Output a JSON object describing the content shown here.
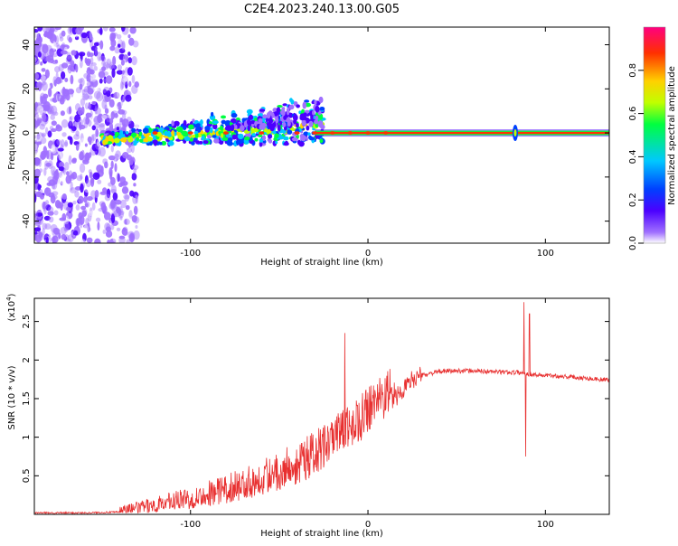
{
  "title": "C2E4.2023.240.13.00.G05",
  "chart_data": [
    {
      "type": "heatmap",
      "xlabel": "Height of straight line (km)",
      "ylabel": "Frequency (Hz)",
      "xlim": [
        -188,
        136
      ],
      "ylim": [
        -50,
        48
      ],
      "x_ticks": [
        -100,
        0,
        100
      ],
      "y_ticks": [
        -40,
        -20,
        0,
        20,
        40
      ],
      "colorbar": {
        "label": "Normalized spectral amplitude",
        "range": [
          0,
          1
        ],
        "ticks": [
          0.0,
          0.2,
          0.4,
          0.6,
          0.8
        ],
        "colormap": [
          "#ffffff",
          "#a070ff",
          "#4b00ff",
          "#0040ff",
          "#00c8ff",
          "#00ff40",
          "#c0ff00",
          "#ffd000",
          "#ff3000",
          "#ff0080"
        ]
      },
      "series_description_values": {
        "noise_region_x": [
          -188,
          -140
        ],
        "stable_line_x": [
          -30,
          136
        ],
        "stable_line_frequency": 0,
        "stable_line_amplitude": 0.9,
        "spike_x": 83
      }
    },
    {
      "type": "line",
      "xlabel": "Height of straight line (km)",
      "ylabel": "SNR (10 * v/v)",
      "y_multiplier": "(x10",
      "y_multiplier_exp": "4",
      "y_multiplier_close": ")",
      "xlim": [
        -188,
        136
      ],
      "ylim": [
        0,
        2.8
      ],
      "x_ticks": [
        -100,
        0,
        100
      ],
      "y_ticks": [
        0.5,
        1.0,
        1.5,
        2.0,
        2.5
      ],
      "color": "#e83030",
      "envelope": {
        "x": [
          -188,
          -160,
          -140,
          -130,
          -120,
          -110,
          -100,
          -90,
          -80,
          -70,
          -60,
          -50,
          -40,
          -30,
          -20,
          -15,
          -10,
          -5,
          0,
          5,
          10,
          15,
          20,
          25,
          30,
          40,
          50,
          60,
          70,
          80,
          85,
          90,
          100,
          110,
          120,
          136
        ],
        "y": [
          0.02,
          0.02,
          0.03,
          0.05,
          0.08,
          0.12,
          0.15,
          0.2,
          0.25,
          0.3,
          0.38,
          0.45,
          0.55,
          0.65,
          0.8,
          0.9,
          1.0,
          1.1,
          1.2,
          1.3,
          1.4,
          1.5,
          1.62,
          1.75,
          1.8,
          1.85,
          1.86,
          1.86,
          1.85,
          1.84,
          1.84,
          1.82,
          1.8,
          1.79,
          1.77,
          1.74
        ]
      },
      "spikes": [
        {
          "x": -13,
          "y": 2.35
        },
        {
          "x": 88,
          "y": 2.75
        },
        {
          "x": 89,
          "y": 0.75
        },
        {
          "x": 91,
          "y": 2.6
        }
      ]
    }
  ]
}
